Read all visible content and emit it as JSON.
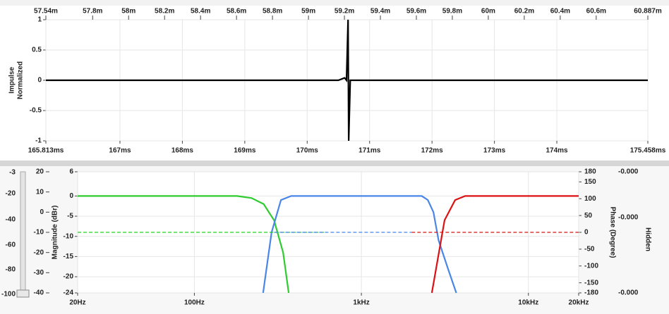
{
  "chart_data": [
    {
      "type": "line",
      "ylabel": [
        "Impulse",
        "Normalized"
      ],
      "x": [
        165.813,
        170.5,
        170.6,
        170.63,
        170.655,
        170.665,
        170.69,
        170.75,
        175.458
      ],
      "series": [
        {
          "color": "#000000",
          "values": [
            0,
            0,
            0.04,
            0,
            1,
            -1,
            0,
            0,
            0
          ]
        }
      ],
      "xlim": [
        165.813,
        175.458
      ],
      "xticks": [
        {
          "value": 165.813,
          "label": "165.813ms"
        },
        {
          "value": 167,
          "label": "167ms"
        },
        {
          "value": 168,
          "label": "168ms"
        },
        {
          "value": 169,
          "label": "169ms"
        },
        {
          "value": 170,
          "label": "170ms"
        },
        {
          "value": 171,
          "label": "171ms"
        },
        {
          "value": 172,
          "label": "172ms"
        },
        {
          "value": 173,
          "label": "173ms"
        },
        {
          "value": 174,
          "label": "174ms"
        },
        {
          "value": 175.458,
          "label": "175.458ms"
        }
      ],
      "x2lim": [
        57.54,
        60.887
      ],
      "x2ticks": [
        {
          "value": 57.54,
          "label": "57.54m"
        },
        {
          "value": 57.8,
          "label": "57.8m"
        },
        {
          "value": 58,
          "label": "58m"
        },
        {
          "value": 58.2,
          "label": "58.2m"
        },
        {
          "value": 58.4,
          "label": "58.4m"
        },
        {
          "value": 58.6,
          "label": "58.6m"
        },
        {
          "value": 58.8,
          "label": "58.8m"
        },
        {
          "value": 59,
          "label": "59m"
        },
        {
          "value": 59.2,
          "label": "59.2m"
        },
        {
          "value": 59.4,
          "label": "59.4m"
        },
        {
          "value": 59.6,
          "label": "59.6m"
        },
        {
          "value": 59.8,
          "label": "59.8m"
        },
        {
          "value": 60,
          "label": "60m"
        },
        {
          "value": 60.2,
          "label": "60.2m"
        },
        {
          "value": 60.4,
          "label": "60.4m"
        },
        {
          "value": 60.6,
          "label": "60.6m"
        },
        {
          "value": 60.887,
          "label": "60.887m"
        }
      ],
      "ylim": [
        -1,
        1
      ],
      "yticks": [
        1,
        0.5,
        0,
        -0.5,
        -1
      ],
      "grid": true
    },
    {
      "type": "line",
      "ylabel": "Magnitude (dBr)",
      "y2label": "Phase (Degree)",
      "xlog": true,
      "series": [
        {
          "color": "#2ecc2e",
          "x": [
            20,
            180,
            220,
            260,
            300,
            340,
            367
          ],
          "values": [
            0,
            0,
            -0.5,
            -2,
            -6,
            -14,
            -24
          ]
        },
        {
          "color": "#4a86e8",
          "x": [
            258,
            290,
            330,
            380,
            2300,
            2500,
            2700,
            2900,
            3300,
            3700
          ],
          "values": [
            -24,
            -9,
            -1,
            0,
            0,
            -1,
            -4,
            -11,
            -18,
            -24
          ]
        },
        {
          "color": "#dd1111",
          "x": [
            2642,
            3148,
            3642,
            4183,
            20000
          ],
          "values": [
            -24,
            -6,
            -1,
            0,
            0
          ]
        },
        {
          "color": "#2ecc2e",
          "axis": "y2",
          "dash": true,
          "x": [
            20,
            600
          ],
          "values": [
            0,
            0
          ]
        },
        {
          "color": "#4a86e8",
          "axis": "y2",
          "dash": true,
          "x": [
            300,
            2000
          ],
          "values": [
            0,
            0
          ]
        },
        {
          "color": "#dd1111",
          "axis": "y2",
          "dash": true,
          "x": [
            2000,
            20000
          ],
          "values": [
            0,
            0
          ]
        }
      ],
      "xlim": [
        20,
        20000
      ],
      "xticks": [
        {
          "value": 20,
          "label": "20Hz"
        },
        {
          "value": 100,
          "label": "100Hz"
        },
        {
          "value": 1000,
          "label": "1kHz"
        },
        {
          "value": 10000,
          "label": "10kHz"
        },
        {
          "value": 20000,
          "label": "20kHz"
        }
      ],
      "ylim": [
        -24,
        6
      ],
      "yticks": [
        6,
        0,
        -5,
        -10,
        -15,
        -20,
        -24
      ],
      "y2lim": [
        -180,
        180
      ],
      "y2ticks": [
        180,
        150,
        100,
        50,
        0,
        -50,
        -100,
        -150,
        -180
      ],
      "grid": true
    }
  ],
  "controls": {
    "level_scale": [
      -3,
      -20,
      -40,
      -60,
      -80,
      -100
    ],
    "gain_scale": [
      20,
      10,
      0,
      -10,
      -20,
      -30,
      -40
    ],
    "readouts": [
      "-0.000",
      "-0.000",
      "-0.000"
    ],
    "hidden_label": "Hidden"
  }
}
